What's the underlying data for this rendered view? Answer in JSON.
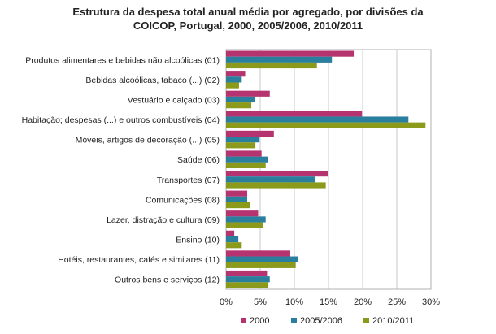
{
  "chart_data": {
    "type": "bar",
    "orientation": "horizontal",
    "title_line1": "Estrutura da despesa total anual média por agregado, por divisões da",
    "title_line2": "COICOP, Portugal, 2000, 2005/2006, 2010/2011",
    "xlabel": "",
    "ylabel": "",
    "xlim": [
      0,
      30
    ],
    "xticks": [
      "0%",
      "5%",
      "10%",
      "15%",
      "20%",
      "25%",
      "30%"
    ],
    "grid": true,
    "legend_position": "bottom",
    "categories": [
      "Produtos alimentares e bebidas não alcoólicas (01)",
      "Bebidas alcoólicas, tabaco (...) (02)",
      "Vestuário e calçado (03)",
      "Habitação; despesas (...) e outros combustíveis (04)",
      "Móveis, artigos de decoração (...) (05)",
      "Saúde (06)",
      "Transportes (07)",
      "Comunicações (08)",
      "Lazer, distração e cultura (09)",
      "Ensino (10)",
      "Hotéis, restaurantes, cafés e similares (11)",
      "Outros bens e serviços (12)"
    ],
    "series": [
      {
        "name": "2000",
        "color": "#b5336e",
        "values": [
          18.7,
          2.8,
          6.4,
          19.9,
          7.0,
          5.2,
          14.9,
          3.1,
          4.7,
          1.2,
          9.4,
          6.0
        ]
      },
      {
        "name": "2005/2006",
        "color": "#2a7f9e",
        "values": [
          15.5,
          2.3,
          4.2,
          26.7,
          4.9,
          6.1,
          13.0,
          3.1,
          5.8,
          1.8,
          10.6,
          6.4
        ]
      },
      {
        "name": "2010/2011",
        "color": "#8b9a1a",
        "values": [
          13.3,
          1.9,
          3.7,
          29.2,
          4.3,
          5.8,
          14.6,
          3.5,
          5.4,
          2.3,
          10.2,
          6.2
        ]
      }
    ]
  }
}
